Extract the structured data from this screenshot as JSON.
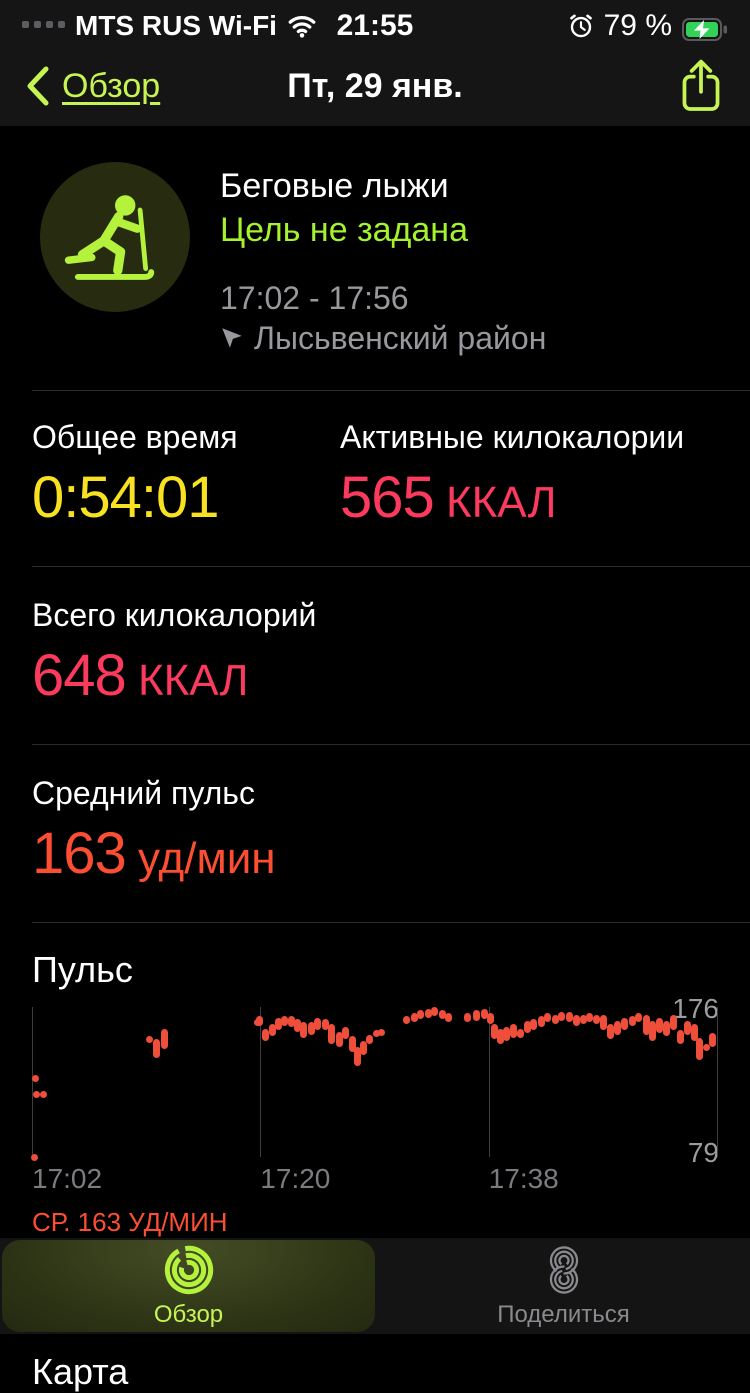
{
  "status_bar": {
    "carrier": "MTS RUS Wi-Fi",
    "time": "21:55",
    "battery_percent": "79 %"
  },
  "nav": {
    "back_label": "Обзор",
    "title": "Пт, 29 янв."
  },
  "workout": {
    "title": "Беговые лыжи",
    "goal": "Цель не задана",
    "time_range": "17:02 - 17:56",
    "location": "Лысьвенский район"
  },
  "stats": {
    "total_time_label": "Общее время",
    "total_time_value": "0:54:01",
    "active_kcal_label": "Активные килокалории",
    "active_kcal_value": "565",
    "active_kcal_unit": " ККАЛ",
    "total_kcal_label": "Всего килокалорий",
    "total_kcal_value": "648",
    "total_kcal_unit": " ККАЛ",
    "avg_hr_label": "Средний пульс",
    "avg_hr_value": "163",
    "avg_hr_unit": " уд/мин"
  },
  "chart_data": {
    "type": "scatter",
    "title": "Пульс",
    "ylabel": "уд/мин",
    "ylim": [
      79,
      176
    ],
    "y_max_label": "176",
    "y_min_label": "79",
    "x_start": "17:02",
    "x_end": "17:56",
    "duration_min": 54,
    "x_ticks": [
      {
        "label": "17:02",
        "pct": 0
      },
      {
        "label": "17:20",
        "pct": 33.33
      },
      {
        "label": "17:38",
        "pct": 66.67
      }
    ],
    "gridline_pcts": [
      0,
      33.33,
      66.67,
      100
    ],
    "avg_label": "СР. 163 УД/МИН",
    "avg_value": 163,
    "legend_position": "none",
    "grid": true,
    "segments": [
      [
        0.15,
        77,
        81
      ],
      [
        0.25,
        128,
        132
      ],
      [
        0.3,
        118,
        122
      ],
      [
        0.85,
        118,
        122
      ],
      [
        9.2,
        154,
        157
      ],
      [
        9.8,
        143,
        155
      ],
      [
        10.4,
        149,
        162
      ],
      [
        17.7,
        165,
        168
      ],
      [
        17.9,
        164,
        170
      ],
      [
        18.4,
        154,
        162
      ],
      [
        18.9,
        157,
        165
      ],
      [
        19.4,
        161,
        169
      ],
      [
        19.9,
        164,
        170
      ],
      [
        20.4,
        163,
        170
      ],
      [
        20.9,
        160,
        168
      ],
      [
        21.4,
        156,
        166
      ],
      [
        22.0,
        158,
        166
      ],
      [
        22.5,
        161,
        169
      ],
      [
        23.1,
        161,
        168
      ],
      [
        23.6,
        152,
        165
      ],
      [
        24.2,
        150,
        160
      ],
      [
        24.7,
        155,
        163
      ],
      [
        25.2,
        147,
        157
      ],
      [
        25.6,
        138,
        150
      ],
      [
        26.1,
        145,
        154
      ],
      [
        26.6,
        152,
        158
      ],
      [
        27.1,
        157,
        161
      ],
      [
        27.5,
        159,
        162
      ],
      [
        29.5,
        165,
        170
      ],
      [
        30.1,
        166,
        172
      ],
      [
        30.6,
        168,
        174
      ],
      [
        31.2,
        169,
        175
      ],
      [
        31.7,
        170,
        176
      ],
      [
        32.3,
        168,
        174
      ],
      [
        32.8,
        166,
        172
      ],
      [
        34.3,
        166,
        172
      ],
      [
        35.0,
        167,
        174
      ],
      [
        35.6,
        168,
        175
      ],
      [
        36.1,
        165,
        172
      ],
      [
        36.4,
        155,
        165
      ],
      [
        36.9,
        152,
        162
      ],
      [
        37.4,
        154,
        163
      ],
      [
        37.9,
        156,
        165
      ],
      [
        38.5,
        156,
        162
      ],
      [
        39.0,
        159,
        167
      ],
      [
        39.5,
        161,
        168
      ],
      [
        40.1,
        163,
        170
      ],
      [
        40.6,
        166,
        172
      ],
      [
        41.2,
        165,
        171
      ],
      [
        41.7,
        167,
        173
      ],
      [
        42.3,
        166,
        173
      ],
      [
        42.9,
        164,
        171
      ],
      [
        43.4,
        165,
        171
      ],
      [
        43.9,
        166,
        172
      ],
      [
        44.5,
        165,
        171
      ],
      [
        45.0,
        161,
        171
      ],
      [
        45.6,
        155,
        165
      ],
      [
        46.1,
        158,
        167
      ],
      [
        46.7,
        161,
        169
      ],
      [
        47.3,
        164,
        170
      ],
      [
        47.8,
        166,
        172
      ],
      [
        48.4,
        158,
        171
      ],
      [
        48.9,
        154,
        167
      ],
      [
        49.4,
        159,
        169
      ],
      [
        50.0,
        157,
        167
      ],
      [
        50.5,
        161,
        171
      ],
      [
        51.1,
        152,
        161
      ],
      [
        51.6,
        158,
        167
      ],
      [
        52.2,
        154,
        165
      ],
      [
        52.6,
        142,
        156
      ],
      [
        53.1,
        148,
        152
      ],
      [
        53.6,
        150,
        159
      ]
    ]
  },
  "pagination": {
    "pages": 2,
    "active_index": 0
  },
  "map_section": {
    "title": "Карта"
  },
  "tab_bar": {
    "tabs": [
      {
        "label": "Обзор",
        "active": true
      },
      {
        "label": "Поделиться",
        "active": false
      }
    ]
  },
  "icons": {
    "wifi": "wifi-icon",
    "alarm": "alarm-clock-icon",
    "battery": "battery-charging-icon",
    "back": "chevron-left-icon",
    "share": "share-icon",
    "workout": "cross-country-ski-icon",
    "location": "location-arrow-icon",
    "overview_tab": "activity-rings-icon",
    "share_tab": "fitness-sharing-icon"
  },
  "colors": {
    "accent_lime": "#c6f553",
    "goal_lime": "#a5f22e",
    "time_yellow": "#f8e120",
    "kcal_pink": "#fb3a5e",
    "hr_red": "#fc4e32",
    "chart_bar_red": "#ee4e3a",
    "secondary_gray": "#98989d",
    "battery_green": "#32d158"
  }
}
